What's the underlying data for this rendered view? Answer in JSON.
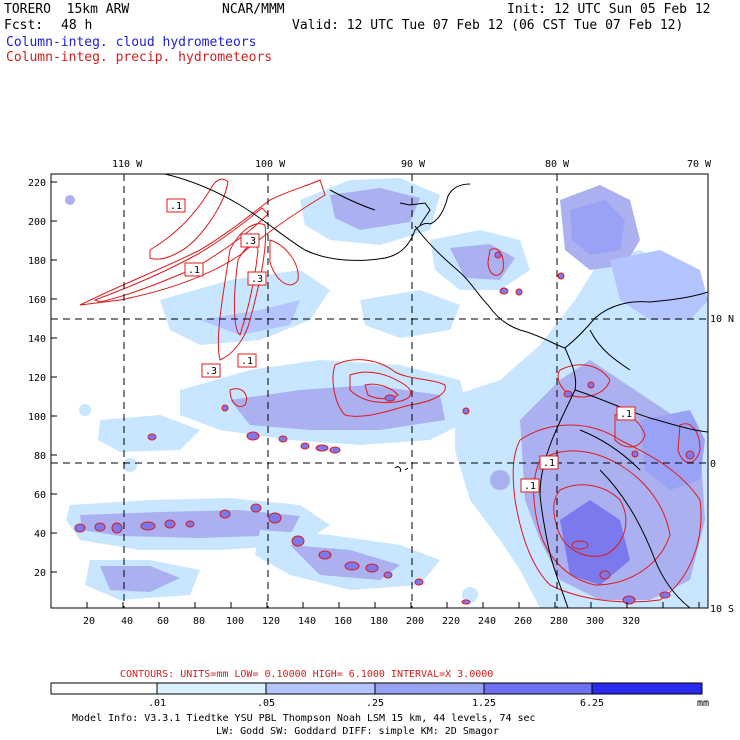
{
  "header": {
    "model": "TORERO  15km ARW",
    "center": "NCAR/MMM",
    "init": "Init: 12 UTC Sun 05 Feb 12",
    "fcst_label": "Fcst:",
    "fcst_value": "48 h",
    "valid": "Valid: 12 UTC Tue 07 Feb 12 (06 CST Tue 07 Feb 12)",
    "field_cloud": "Column-integ. cloud hydrometeors",
    "field_precip": "Column-integ. precip. hydrometeors"
  },
  "map": {
    "lon_labels": [
      "110 W",
      "100 W",
      "90 W",
      "80 W",
      "70 W"
    ],
    "lat_labels": [
      "10 N",
      "0",
      "10 S"
    ],
    "x_ticks": [
      "20",
      "40",
      "60",
      "80",
      "100",
      "120",
      "140",
      "160",
      "180",
      "200",
      "220",
      "240",
      "260",
      "280",
      "300",
      "320"
    ],
    "y_ticks": [
      "220",
      "200",
      "180",
      "160",
      "140",
      "120",
      "100",
      "80",
      "60",
      "40",
      "20"
    ],
    "contour_labels": [
      ".1",
      ".3",
      ".1",
      ".3",
      ".1",
      ".3",
      ".1",
      ".1",
      ".1"
    ]
  },
  "contours_info": "CONTOURS:  UNITS=mm  LOW= 0.10000       HIGH=  6.1000      INTERVAL=X  3.0000",
  "colorbar": {
    "labels": [
      ".01",
      ".05",
      ".25",
      "1.25",
      "6.25"
    ],
    "unit": "mm",
    "colors": [
      "#ffffff",
      "#d8f0ff",
      "#b4c4ff",
      "#9aa2f6",
      "#6f6ff2",
      "#3a3ae8",
      "#1010ff"
    ]
  },
  "footer": {
    "line1": "Model Info: V3.3.1    Tiedtke YSU PBL  Thompson     Noah LSM  15 km,   44 levels,    74 sec",
    "line2": "LW: Godd SW: Goddard DIFF: simple KM: 2D Smagor"
  },
  "colors": {
    "precip_contour": "#e01818",
    "cloud_light": "#c8e6ff",
    "cloud_mid": "#aab0f0",
    "cloud_dark": "#7a7aee"
  }
}
